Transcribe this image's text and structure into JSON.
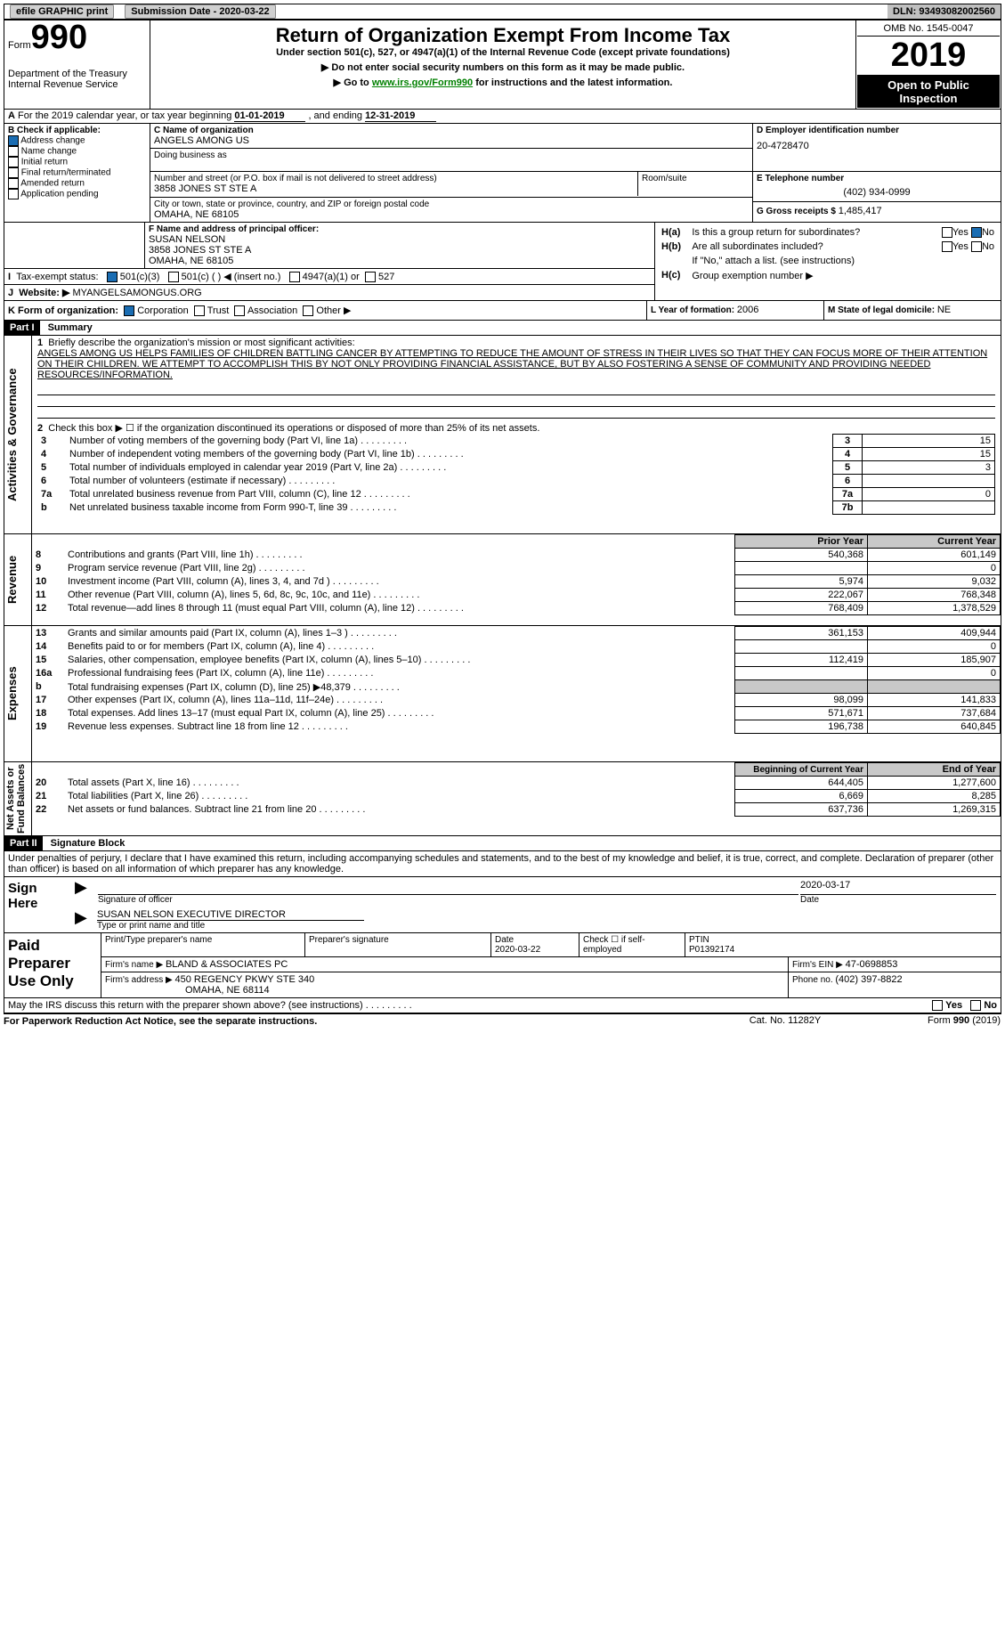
{
  "topbar": {
    "efile": "efile GRAPHIC print",
    "submission_label": "Submission Date - ",
    "submission_date": "2020-03-22",
    "dln_label": "DLN: ",
    "dln": "93493082002560"
  },
  "header": {
    "form_label": "Form",
    "form_number": "990",
    "dept": "Department of the Treasury\nInternal Revenue Service",
    "title": "Return of Organization Exempt From Income Tax",
    "subtitle": "Under section 501(c), 527, or 4947(a)(1) of the Internal Revenue Code (except private foundations)",
    "note1": "▶ Do not enter social security numbers on this form as it may be made public.",
    "note2_pre": "▶ Go to ",
    "note2_link": "www.irs.gov/Form990",
    "note2_post": " for instructions and the latest information.",
    "omb": "OMB No. 1545-0047",
    "year": "2019",
    "open_public": "Open to Public Inspection"
  },
  "period": {
    "line_a": "For the 2019 calendar year, or tax year beginning ",
    "begin": "01-01-2019",
    "mid": " , and ending ",
    "end": "12-31-2019"
  },
  "boxB": {
    "title": "B Check if applicable:",
    "addr_change": "Address change",
    "name_change": "Name change",
    "initial": "Initial return",
    "final": "Final return/terminated",
    "amended": "Amended return",
    "app_pending": "Application pending"
  },
  "boxC": {
    "label": "C Name of organization",
    "org": "ANGELS AMONG US",
    "dba_label": "Doing business as",
    "street_label": "Number and street (or P.O. box if mail is not delivered to street address)",
    "room_label": "Room/suite",
    "street": "3858 JONES ST STE A",
    "city_label": "City or town, state or province, country, and ZIP or foreign postal code",
    "city": "OMAHA, NE  68105"
  },
  "boxD": {
    "label": "D Employer identification number",
    "ein": "20-4728470"
  },
  "boxE": {
    "label": "E Telephone number",
    "phone": "(402) 934-0999"
  },
  "boxG": {
    "label": "G Gross receipts $ ",
    "val": "1,485,417"
  },
  "boxF": {
    "label": "F Name and address of principal officer:",
    "name": "SUSAN NELSON",
    "addr1": "3858 JONES ST STE A",
    "addr2": "OMAHA, NE  68105"
  },
  "boxH": {
    "ha_label": "H(a)",
    "ha_text": "Is this a group return for subordinates?",
    "hb_label": "H(b)",
    "hb_text": "Are all subordinates included?",
    "hb_note": "If \"No,\" attach a list. (see instructions)",
    "hc_label": "H(c)",
    "hc_text": "Group exemption number ▶",
    "yes": "Yes",
    "no": "No"
  },
  "taxexempt": {
    "label_i": "I",
    "label": "Tax-exempt status:",
    "c3": "501(c)(3)",
    "c_other": "501(c) (   ) ◀ (insert no.)",
    "a1": "4947(a)(1) or",
    "s527": "527"
  },
  "website": {
    "label_j": "J",
    "label": "Website: ▶",
    "val": "MYANGELSAMONGUS.ORG"
  },
  "boxK": {
    "label": "K Form of organization:",
    "corp": "Corporation",
    "trust": "Trust",
    "assoc": "Association",
    "other": "Other ▶"
  },
  "boxL": {
    "label": "L Year of formation: ",
    "val": "2006"
  },
  "boxM": {
    "label": "M State of legal domicile: ",
    "val": "NE"
  },
  "part1": {
    "hdr": "Part I",
    "title": "Summary",
    "activities_label": "Activities & Governance",
    "revenue_label": "Revenue",
    "expenses_label": "Expenses",
    "netassets_label": "Net Assets or\nFund Balances",
    "line1_label": "1",
    "line1_text": "Briefly describe the organization's mission or most significant activities:",
    "mission": "ANGELS AMONG US HELPS FAMILIES OF CHILDREN BATTLING CANCER BY ATTEMPTING TO REDUCE THE AMOUNT OF STRESS IN THEIR LIVES SO THAT THEY CAN FOCUS MORE OF THEIR ATTENTION ON THEIR CHILDREN. WE ATTEMPT TO ACCOMPLISH THIS BY NOT ONLY PROVIDING FINANCIAL ASSISTANCE, BUT BY ALSO FOSTERING A SENSE OF COMMUNITY AND PROVIDING NEEDED RESOURCES/INFORMATION.",
    "line2": "Check this box ▶ ☐  if the organization discontinued its operations or disposed of more than 25% of its net assets.",
    "rows": [
      {
        "n": "3",
        "desc": "Number of voting members of the governing body (Part VI, line 1a)",
        "box": "3",
        "val": "15"
      },
      {
        "n": "4",
        "desc": "Number of independent voting members of the governing body (Part VI, line 1b)",
        "box": "4",
        "val": "15"
      },
      {
        "n": "5",
        "desc": "Total number of individuals employed in calendar year 2019 (Part V, line 2a)",
        "box": "5",
        "val": "3"
      },
      {
        "n": "6",
        "desc": "Total number of volunteers (estimate if necessary)",
        "box": "6",
        "val": ""
      },
      {
        "n": "7a",
        "desc": "Total unrelated business revenue from Part VIII, column (C), line 12",
        "box": "7a",
        "val": "0"
      },
      {
        "n": "b",
        "desc": "Net unrelated business taxable income from Form 990-T, line 39",
        "box": "7b",
        "val": ""
      }
    ],
    "prior_hdr": "Prior Year",
    "current_hdr": "Current Year",
    "revenue_rows": [
      {
        "n": "8",
        "desc": "Contributions and grants (Part VIII, line 1h)",
        "prior": "540,368",
        "curr": "601,149"
      },
      {
        "n": "9",
        "desc": "Program service revenue (Part VIII, line 2g)",
        "prior": "",
        "curr": "0"
      },
      {
        "n": "10",
        "desc": "Investment income (Part VIII, column (A), lines 3, 4, and 7d )",
        "prior": "5,974",
        "curr": "9,032"
      },
      {
        "n": "11",
        "desc": "Other revenue (Part VIII, column (A), lines 5, 6d, 8c, 9c, 10c, and 11e)",
        "prior": "222,067",
        "curr": "768,348"
      },
      {
        "n": "12",
        "desc": "Total revenue—add lines 8 through 11 (must equal Part VIII, column (A), line 12)",
        "prior": "768,409",
        "curr": "1,378,529"
      }
    ],
    "expense_rows": [
      {
        "n": "13",
        "desc": "Grants and similar amounts paid (Part IX, column (A), lines 1–3 )",
        "prior": "361,153",
        "curr": "409,944"
      },
      {
        "n": "14",
        "desc": "Benefits paid to or for members (Part IX, column (A), line 4)",
        "prior": "",
        "curr": "0"
      },
      {
        "n": "15",
        "desc": "Salaries, other compensation, employee benefits (Part IX, column (A), lines 5–10)",
        "prior": "112,419",
        "curr": "185,907"
      },
      {
        "n": "16a",
        "desc": "Professional fundraising fees (Part IX, column (A), line 11e)",
        "prior": "",
        "curr": "0"
      },
      {
        "n": "b",
        "desc": "Total fundraising expenses (Part IX, column (D), line 25) ▶48,379",
        "prior": "SHADE",
        "curr": "SHADE"
      },
      {
        "n": "17",
        "desc": "Other expenses (Part IX, column (A), lines 11a–11d, 11f–24e)",
        "prior": "98,099",
        "curr": "141,833"
      },
      {
        "n": "18",
        "desc": "Total expenses. Add lines 13–17 (must equal Part IX, column (A), line 25)",
        "prior": "571,671",
        "curr": "737,684"
      },
      {
        "n": "19",
        "desc": "Revenue less expenses. Subtract line 18 from line 12",
        "prior": "196,738",
        "curr": "640,845"
      }
    ],
    "begin_hdr": "Beginning of Current Year",
    "end_hdr": "End of Year",
    "net_rows": [
      {
        "n": "20",
        "desc": "Total assets (Part X, line 16)",
        "prior": "644,405",
        "curr": "1,277,600"
      },
      {
        "n": "21",
        "desc": "Total liabilities (Part X, line 26)",
        "prior": "6,669",
        "curr": "8,285"
      },
      {
        "n": "22",
        "desc": "Net assets or fund balances. Subtract line 21 from line 20",
        "prior": "637,736",
        "curr": "1,269,315"
      }
    ]
  },
  "part2": {
    "hdr": "Part II",
    "title": "Signature Block",
    "perjury": "Under penalties of perjury, I declare that I have examined this return, including accompanying schedules and statements, and to the best of my knowledge and belief, it is true, correct, and complete. Declaration of preparer (other than officer) is based on all information of which preparer has any knowledge.",
    "sign_here": "Sign Here",
    "sig_officer": "Signature of officer",
    "sig_date_val": "2020-03-17",
    "date_label": "Date",
    "officer_name": "SUSAN NELSON EXECUTIVE DIRECTOR",
    "type_name": "Type or print name and title",
    "paid_prep": "Paid Preparer Use Only",
    "print_name": "Print/Type preparer's name",
    "prep_sig": "Preparer's signature",
    "prep_date_label": "Date",
    "prep_date": "2020-03-22",
    "check_self": "Check ☐ if self-employed",
    "ptin_label": "PTIN",
    "ptin": "P01392174",
    "firm_name_label": "Firm's name   ▶ ",
    "firm_name": "BLAND & ASSOCIATES PC",
    "firm_ein_label": "Firm's EIN ▶ ",
    "firm_ein": "47-0698853",
    "firm_addr_label": "Firm's address ▶ ",
    "firm_addr1": "450 REGENCY PKWY STE 340",
    "firm_addr2": "OMAHA, NE  68114",
    "firm_phone_label": "Phone no. ",
    "firm_phone": "(402) 397-8822",
    "may_irs": "May the IRS discuss this return with the preparer shown above? (see instructions)"
  },
  "footer": {
    "paperwork": "For Paperwork Reduction Act Notice, see the separate instructions.",
    "cat": "Cat. No. 11282Y",
    "form": "Form 990 (2019)"
  }
}
